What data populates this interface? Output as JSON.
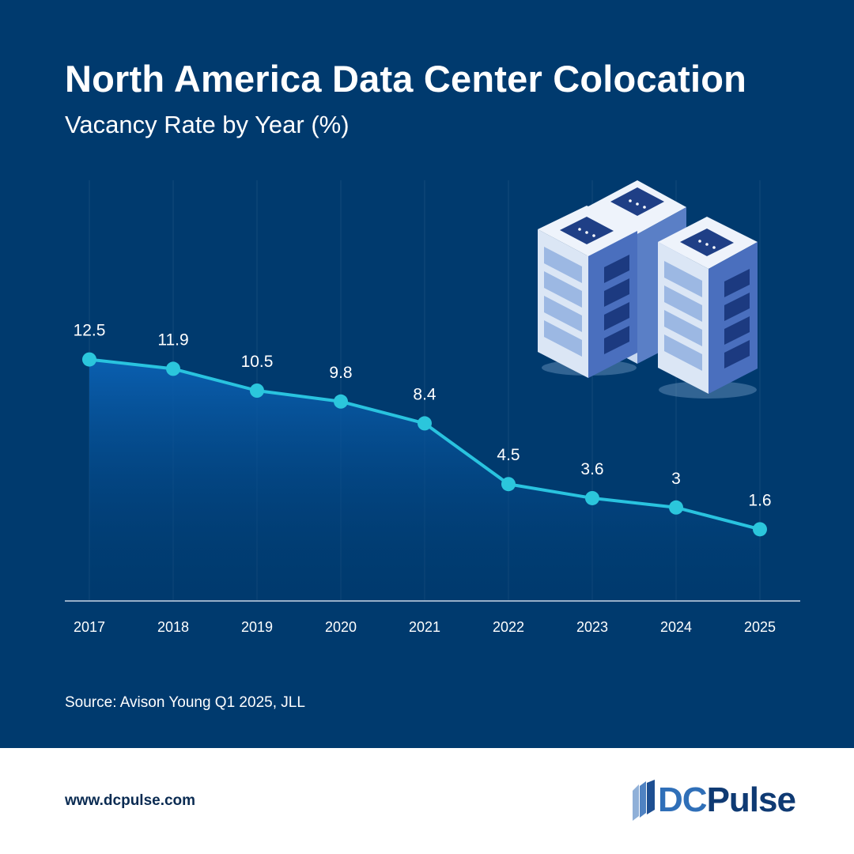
{
  "title": "North America Data Center Colocation",
  "subtitle": "Vacancy Rate by Year (%)",
  "source": "Source: Avison Young Q1 2025, JLL",
  "website": "www.dcpulse.com",
  "logo": {
    "dc": "DC",
    "rest": "Pulse"
  },
  "colors": {
    "background": "#003a6e",
    "line": "#29c3df",
    "point": "#2bc6dc",
    "area_top": "#0a5fb0",
    "area_bottom": "#003a6e",
    "text": "#ffffff"
  },
  "illustration_icon": "server-racks-icon",
  "chart_data": {
    "type": "area",
    "title": "North America Data Center Colocation",
    "subtitle": "Vacancy Rate by Year (%)",
    "categories": [
      "2017",
      "2018",
      "2019",
      "2020",
      "2021",
      "2022",
      "2023",
      "2024",
      "2025"
    ],
    "series": [
      {
        "name": "Vacancy Rate (%)",
        "values": [
          12.5,
          11.9,
          10.5,
          9.8,
          8.4,
          4.5,
          3.6,
          3,
          1.6
        ]
      }
    ],
    "data_labels": [
      "12.5",
      "11.9",
      "10.5",
      "9.8",
      "8.4",
      "4.5",
      "3.6",
      "3",
      "1.6"
    ],
    "ylim": [
      -3,
      24
    ],
    "xlabel": "",
    "ylabel": "",
    "grid": "vertical",
    "legend": "none"
  }
}
